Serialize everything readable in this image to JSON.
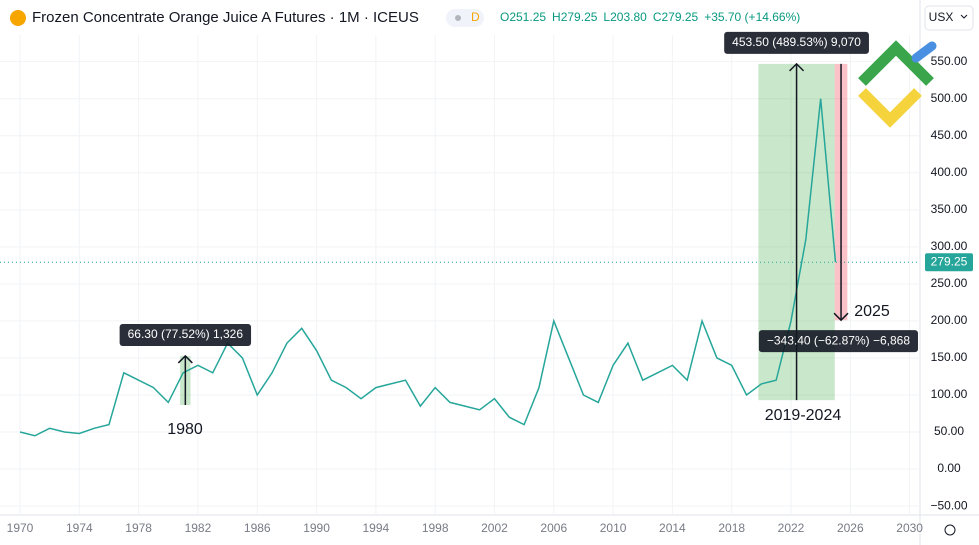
{
  "chart_data": {
    "type": "line",
    "title": "Frozen Concentrate Orange Juice A Futures · 1M · ICEUS",
    "badge": "D",
    "legend_values": [
      "O251.25",
      "H279.25",
      "L203.80",
      "C279.25",
      "+35.70 (+14.66%)"
    ],
    "currency": "USX",
    "color": "#26a69a",
    "x": [
      1970,
      1971,
      1972,
      1973,
      1974,
      1975,
      1976,
      1977,
      1978,
      1979,
      1980,
      1981,
      1982,
      1983,
      1984,
      1985,
      1986,
      1987,
      1988,
      1989,
      1990,
      1991,
      1992,
      1993,
      1994,
      1995,
      1996,
      1997,
      1998,
      1999,
      2000,
      2001,
      2002,
      2003,
      2004,
      2005,
      2006,
      2007,
      2008,
      2009,
      2010,
      2011,
      2012,
      2013,
      2014,
      2015,
      2016,
      2017,
      2018,
      2019,
      2020,
      2021,
      2022,
      2023,
      2024,
      2025
    ],
    "values": [
      50,
      45,
      55,
      50,
      48,
      55,
      60,
      130,
      120,
      110,
      90,
      130,
      140,
      130,
      170,
      150,
      100,
      130,
      170,
      190,
      160,
      120,
      110,
      95,
      110,
      115,
      120,
      85,
      110,
      90,
      85,
      80,
      95,
      70,
      60,
      110,
      200,
      150,
      100,
      90,
      140,
      170,
      120,
      130,
      140,
      120,
      200,
      150,
      140,
      100,
      115,
      120,
      200,
      310,
      500,
      279.25
    ],
    "xlim": [
      1968.65,
      2030.7
    ],
    "ylim": [
      -62,
      586
    ],
    "xticks": [
      1970,
      1974,
      1978,
      1982,
      1986,
      1990,
      1994,
      1998,
      2002,
      2006,
      2010,
      2014,
      2018,
      2022,
      2026,
      2030
    ],
    "yticks": [
      {
        "value": -50,
        "label": "−50.00"
      },
      {
        "value": 0,
        "label": "0.00"
      },
      {
        "value": 50,
        "label": "50.00"
      },
      {
        "value": 100,
        "label": "100.00"
      },
      {
        "value": 150,
        "label": "150.00"
      },
      {
        "value": 200,
        "label": "200.00"
      },
      {
        "value": 250,
        "label": "250.00"
      },
      {
        "value": 300,
        "label": "300.00"
      },
      {
        "value": 350,
        "label": "350.00"
      },
      {
        "value": 400,
        "label": "400.00"
      },
      {
        "value": 450,
        "label": "450.00"
      },
      {
        "value": 500,
        "label": "500.00"
      },
      {
        "value": 550,
        "label": "550.00"
      }
    ],
    "last_price": 279.25,
    "measures": [
      {
        "label": "66.30 (77.52%) 1,326",
        "x": [
          1980.8,
          1981.5
        ],
        "y": [
          86.5,
          152.7
        ],
        "color": "#4caf50"
      },
      {
        "label": "453.50 (489.53%) 9,070",
        "x": [
          2019.8,
          2024.95
        ],
        "y": [
          93,
          547
        ],
        "color": "#4caf50"
      },
      {
        "label": "−343.40 (−62.87%) −6,868",
        "x": [
          2024.95,
          2025.8
        ],
        "y": [
          547,
          201
        ],
        "color": "#f23645"
      }
    ],
    "annotations": [
      "1980",
      "2025",
      "2019-2024"
    ]
  }
}
